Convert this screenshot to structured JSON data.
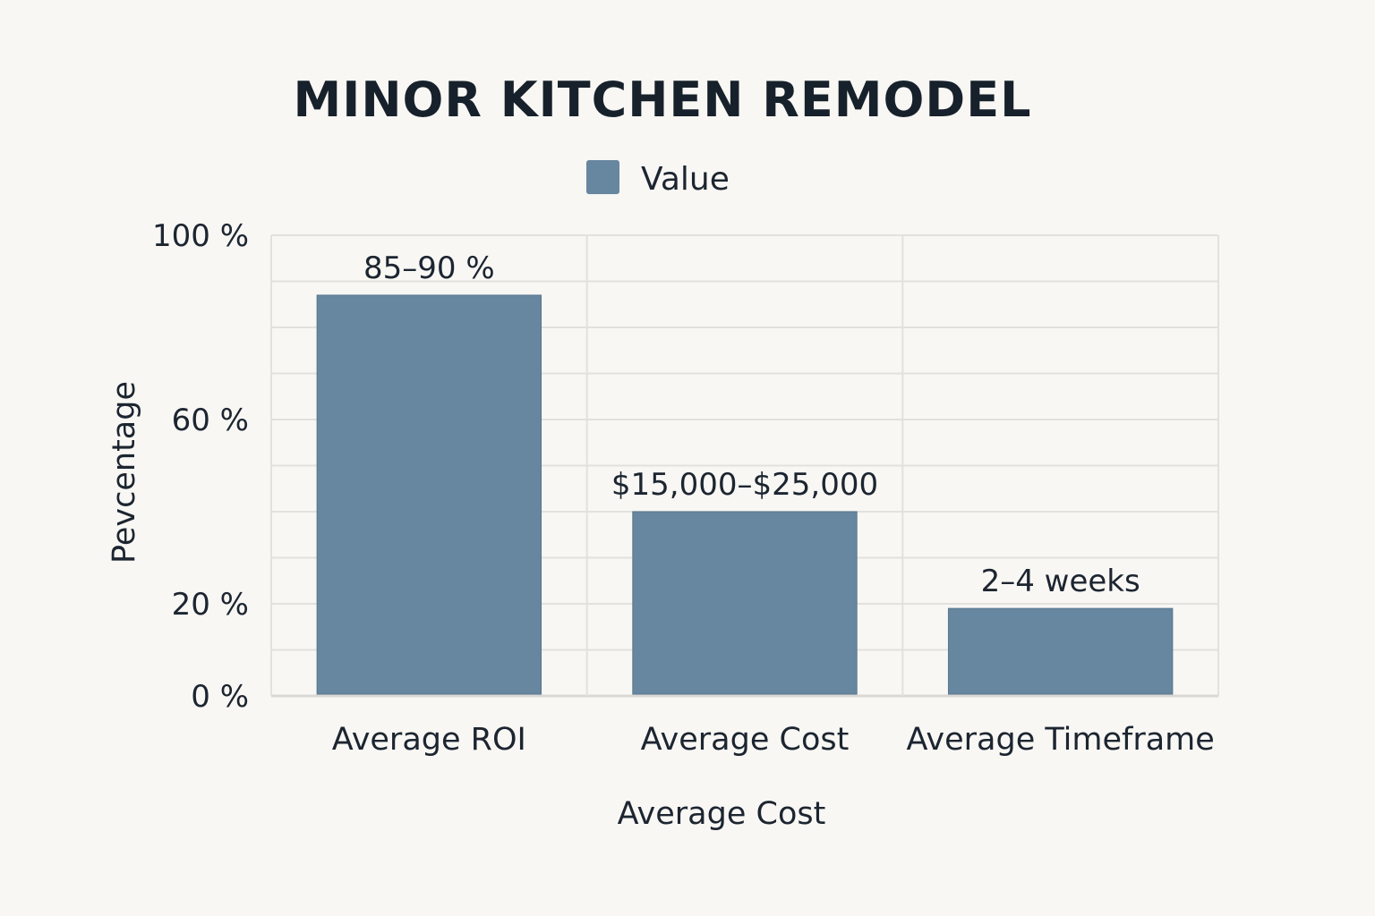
{
  "chart_data": {
    "type": "bar",
    "title": "MINOR KITCHEN REMODEL",
    "legend": {
      "position": "top-center",
      "entries": [
        "Value"
      ]
    },
    "xlabel": "Average Cost",
    "ylabel": "Pevcentage",
    "ylim": [
      0,
      100
    ],
    "y_ticks": [
      {
        "value": 0,
        "label": "0 %"
      },
      {
        "value": 20,
        "label": "20 %"
      },
      {
        "value": 60,
        "label": "60 %"
      },
      {
        "value": 100,
        "label": "100 %"
      }
    ],
    "categories": [
      "Average ROI",
      "Average Cost",
      "Average Timeframe"
    ],
    "series": [
      {
        "name": "Value",
        "color": "#67869f",
        "values": [
          87,
          40,
          19
        ],
        "data_labels": [
          "85–90 %",
          "$15,000–$25,000",
          "2–4 weeks"
        ]
      }
    ],
    "grid": true
  }
}
